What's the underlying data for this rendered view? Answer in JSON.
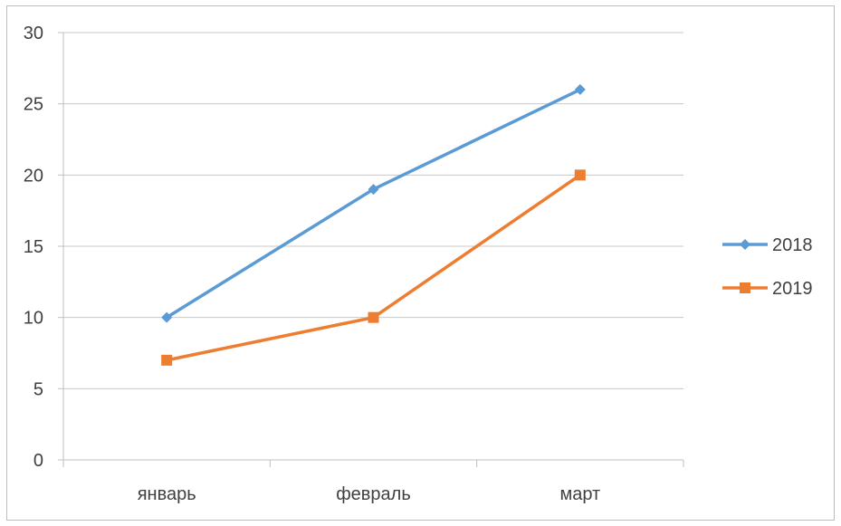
{
  "chart_data": {
    "type": "line",
    "title": "",
    "xlabel": "",
    "ylabel": "",
    "categories": [
      "январь",
      "февраль",
      "март"
    ],
    "ylim": [
      0,
      30
    ],
    "yticks": [
      0,
      5,
      10,
      15,
      20,
      25,
      30
    ],
    "grid": "horizontal",
    "legend_position": "right",
    "series": [
      {
        "name": "2018",
        "values": [
          10,
          19,
          26
        ],
        "color": "#5B9BD5",
        "marker": "diamond"
      },
      {
        "name": "2019",
        "values": [
          7,
          10,
          20
        ],
        "color": "#ED7D31",
        "marker": "square"
      }
    ]
  }
}
